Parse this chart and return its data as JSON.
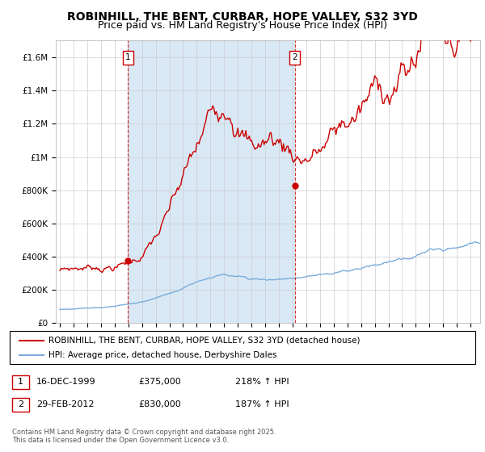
{
  "title": "ROBINHILL, THE BENT, CURBAR, HOPE VALLEY, S32 3YD",
  "subtitle": "Price paid vs. HM Land Registry's House Price Index (HPI)",
  "title_fontsize": 10,
  "subtitle_fontsize": 9,
  "ylabel_ticks": [
    "£0",
    "£200K",
    "£400K",
    "£600K",
    "£800K",
    "£1M",
    "£1.2M",
    "£1.4M",
    "£1.6M"
  ],
  "ytick_vals": [
    0,
    200000,
    400000,
    600000,
    800000,
    1000000,
    1200000,
    1400000,
    1600000
  ],
  "ylim": [
    0,
    1700000
  ],
  "xlim_start": 1994.7,
  "xlim_end": 2025.7,
  "xtick_years": [
    1995,
    1996,
    1997,
    1998,
    1999,
    2000,
    2001,
    2002,
    2003,
    2004,
    2005,
    2006,
    2007,
    2008,
    2009,
    2010,
    2011,
    2012,
    2013,
    2014,
    2015,
    2016,
    2017,
    2018,
    2019,
    2020,
    2021,
    2022,
    2023,
    2024,
    2025
  ],
  "property_color": "#cc0000",
  "hpi_color": "#7aacdb",
  "vline_color": "#cc0000",
  "shade_color": "#d9e8f5",
  "sale1_year": 1999.96,
  "sale1_price": 375000,
  "sale1_label": "1",
  "sale2_year": 2012.16,
  "sale2_price": 830000,
  "sale2_label": "2",
  "legend_entries": [
    "ROBINHILL, THE BENT, CURBAR, HOPE VALLEY, S32 3YD (detached house)",
    "HPI: Average price, detached house, Derbyshire Dales"
  ],
  "annotation1_date": "16-DEC-1999",
  "annotation1_price": "£375,000",
  "annotation1_hpi": "218% ↑ HPI",
  "annotation2_date": "29-FEB-2012",
  "annotation2_price": "£830,000",
  "annotation2_hpi": "187% ↑ HPI",
  "footer": "Contains HM Land Registry data © Crown copyright and database right 2025.\nThis data is licensed under the Open Government Licence v3.0.",
  "bg_color": "#ffffff",
  "grid_color": "#cccccc"
}
